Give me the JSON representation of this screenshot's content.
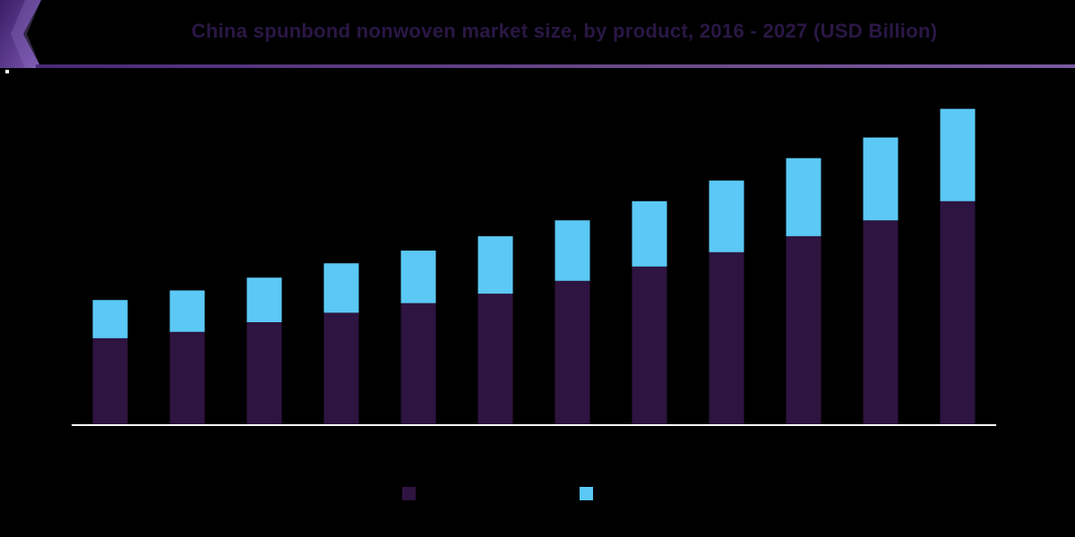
{
  "header": {
    "title": "China spunbond nonwoven market size, by product, 2016 - 2027 (USD Billion)"
  },
  "colors": {
    "background": "#000000",
    "series_dark": "#2e1440",
    "series_light": "#5bc8f5",
    "title_text": "#2a1745",
    "accent": "#6a3fa0",
    "baseline": "#ffffff"
  },
  "chart_data": {
    "type": "bar",
    "stacked": true,
    "title": "China spunbond nonwoven market size, by product, 2016 - 2027 (USD Billion)",
    "categories": [
      "",
      "",
      "",
      "",
      "",
      "",
      "",
      "",
      "",
      "",
      "",
      ""
    ],
    "series": [
      {
        "values": [
          5.4,
          5.8,
          6.4,
          7.0,
          7.6,
          8.2,
          9.0,
          9.9,
          10.8,
          11.8,
          12.8,
          14.0
        ]
      },
      {
        "values": [
          2.4,
          2.6,
          2.8,
          3.1,
          3.3,
          3.6,
          3.8,
          4.1,
          4.5,
          4.9,
          5.2,
          5.8
        ]
      }
    ],
    "ylim": [
      0,
      20
    ],
    "grid": false,
    "legend": "bottom",
    "xlabel": "",
    "ylabel": ""
  }
}
